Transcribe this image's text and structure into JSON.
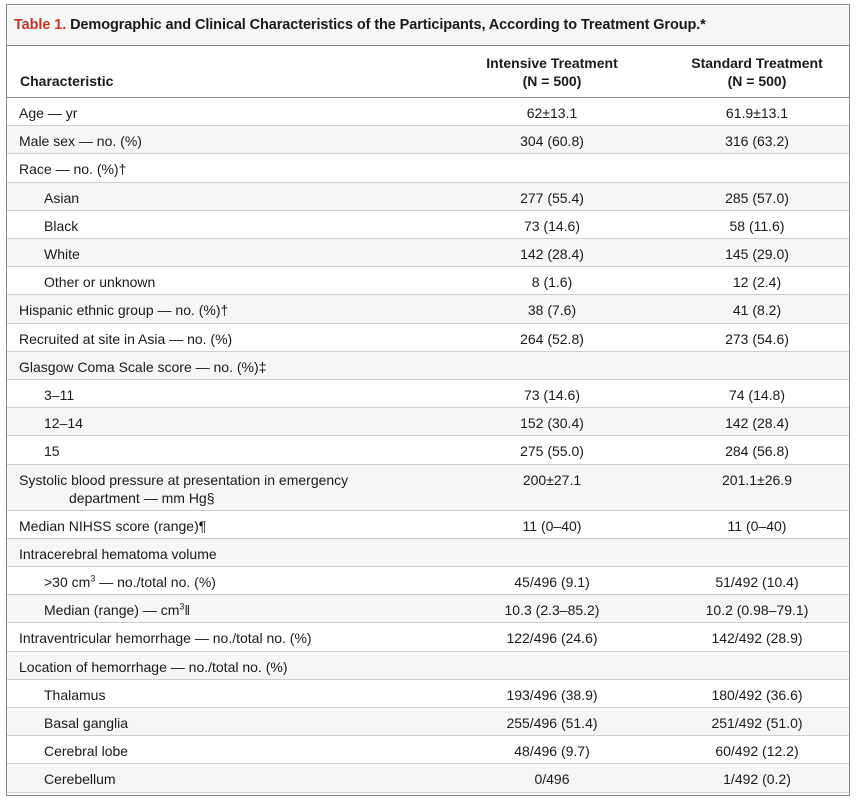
{
  "title": {
    "prefix": "Table 1.",
    "text": "Demographic and Clinical Characteristics of the Participants, According to Treatment Group.*"
  },
  "columns": {
    "characteristic": "Characteristic",
    "intensive": {
      "name": "Intensive Treatment",
      "n": "(N = 500)"
    },
    "standard": {
      "name": "Standard Treatment",
      "n": "(N = 500)"
    }
  },
  "rows": [
    {
      "label": "Age — yr",
      "intensive": "62±13.1",
      "standard": "61.9±13.1",
      "indent": false
    },
    {
      "label": "Male sex — no. (%)",
      "intensive": "304 (60.8)",
      "standard": "316 (63.2)",
      "indent": false
    },
    {
      "label": "Race — no. (%)†",
      "intensive": "",
      "standard": "",
      "indent": false
    },
    {
      "label": "Asian",
      "intensive": "277 (55.4)",
      "standard": "285 (57.0)",
      "indent": true
    },
    {
      "label": "Black",
      "intensive": "73 (14.6)",
      "standard": "58 (11.6)",
      "indent": true
    },
    {
      "label": "White",
      "intensive": "142 (28.4)",
      "standard": "145 (29.0)",
      "indent": true
    },
    {
      "label": "Other or unknown",
      "intensive": "8 (1.6)",
      "standard": "12 (2.4)",
      "indent": true
    },
    {
      "label": "Hispanic ethnic group — no. (%)†",
      "intensive": "38 (7.6)",
      "standard": "41 (8.2)",
      "indent": false
    },
    {
      "label": "Recruited at site in Asia — no. (%)",
      "intensive": "264 (52.8)",
      "standard": "273 (54.6)",
      "indent": false
    },
    {
      "label": "Glasgow Coma Scale score — no. (%)‡",
      "intensive": "",
      "standard": "",
      "indent": false
    },
    {
      "label": "3–11",
      "intensive": "73 (14.6)",
      "standard": "74 (14.8)",
      "indent": true
    },
    {
      "label": "12–14",
      "intensive": "152 (30.4)",
      "standard": "142 (28.4)",
      "indent": true
    },
    {
      "label": "15",
      "intensive": "275 (55.0)",
      "standard": "284 (56.8)",
      "indent": true
    },
    {
      "label": "Systolic blood pressure at presentation in emergency",
      "label2": "department — mm Hg§",
      "intensive": "200±27.1",
      "standard": "201.1±26.9",
      "indent": false
    },
    {
      "label": "Median NIHSS score (range)¶",
      "intensive": "11 (0–40)",
      "standard": "11 (0–40)",
      "indent": false
    },
    {
      "label": "Intracerebral hematoma volume",
      "intensive": "",
      "standard": "",
      "indent": false
    },
    {
      "label": ">30 cm",
      "sup": "3",
      "label_tail": " — no./total no. (%)",
      "intensive": "45/496 (9.1)",
      "standard": "51/492 (10.4)",
      "indent": true
    },
    {
      "label": "Median (range) — cm",
      "sup": "3",
      "label_tail": "‖",
      "intensive": "10.3 (2.3–85.2)",
      "standard": "10.2 (0.98–79.1)",
      "indent": true
    },
    {
      "label": "Intraventricular hemorrhage — no./total no. (%)",
      "intensive": "122/496 (24.6)",
      "standard": "142/492 (28.9)",
      "indent": false
    },
    {
      "label": "Location of hemorrhage — no./total no. (%)",
      "intensive": "",
      "standard": "",
      "indent": false
    },
    {
      "label": "Thalamus",
      "intensive": "193/496 (38.9)",
      "standard": "180/492 (36.6)",
      "indent": true
    },
    {
      "label": "Basal ganglia",
      "intensive": "255/496 (51.4)",
      "standard": "251/492 (51.0)",
      "indent": true
    },
    {
      "label": "Cerebral lobe",
      "intensive": "48/496 (9.7)",
      "standard": "60/492 (12.2)",
      "indent": true
    },
    {
      "label": "Cerebellum",
      "intensive": "0/496",
      "standard": "1/492 (0.2)",
      "indent": true
    }
  ]
}
